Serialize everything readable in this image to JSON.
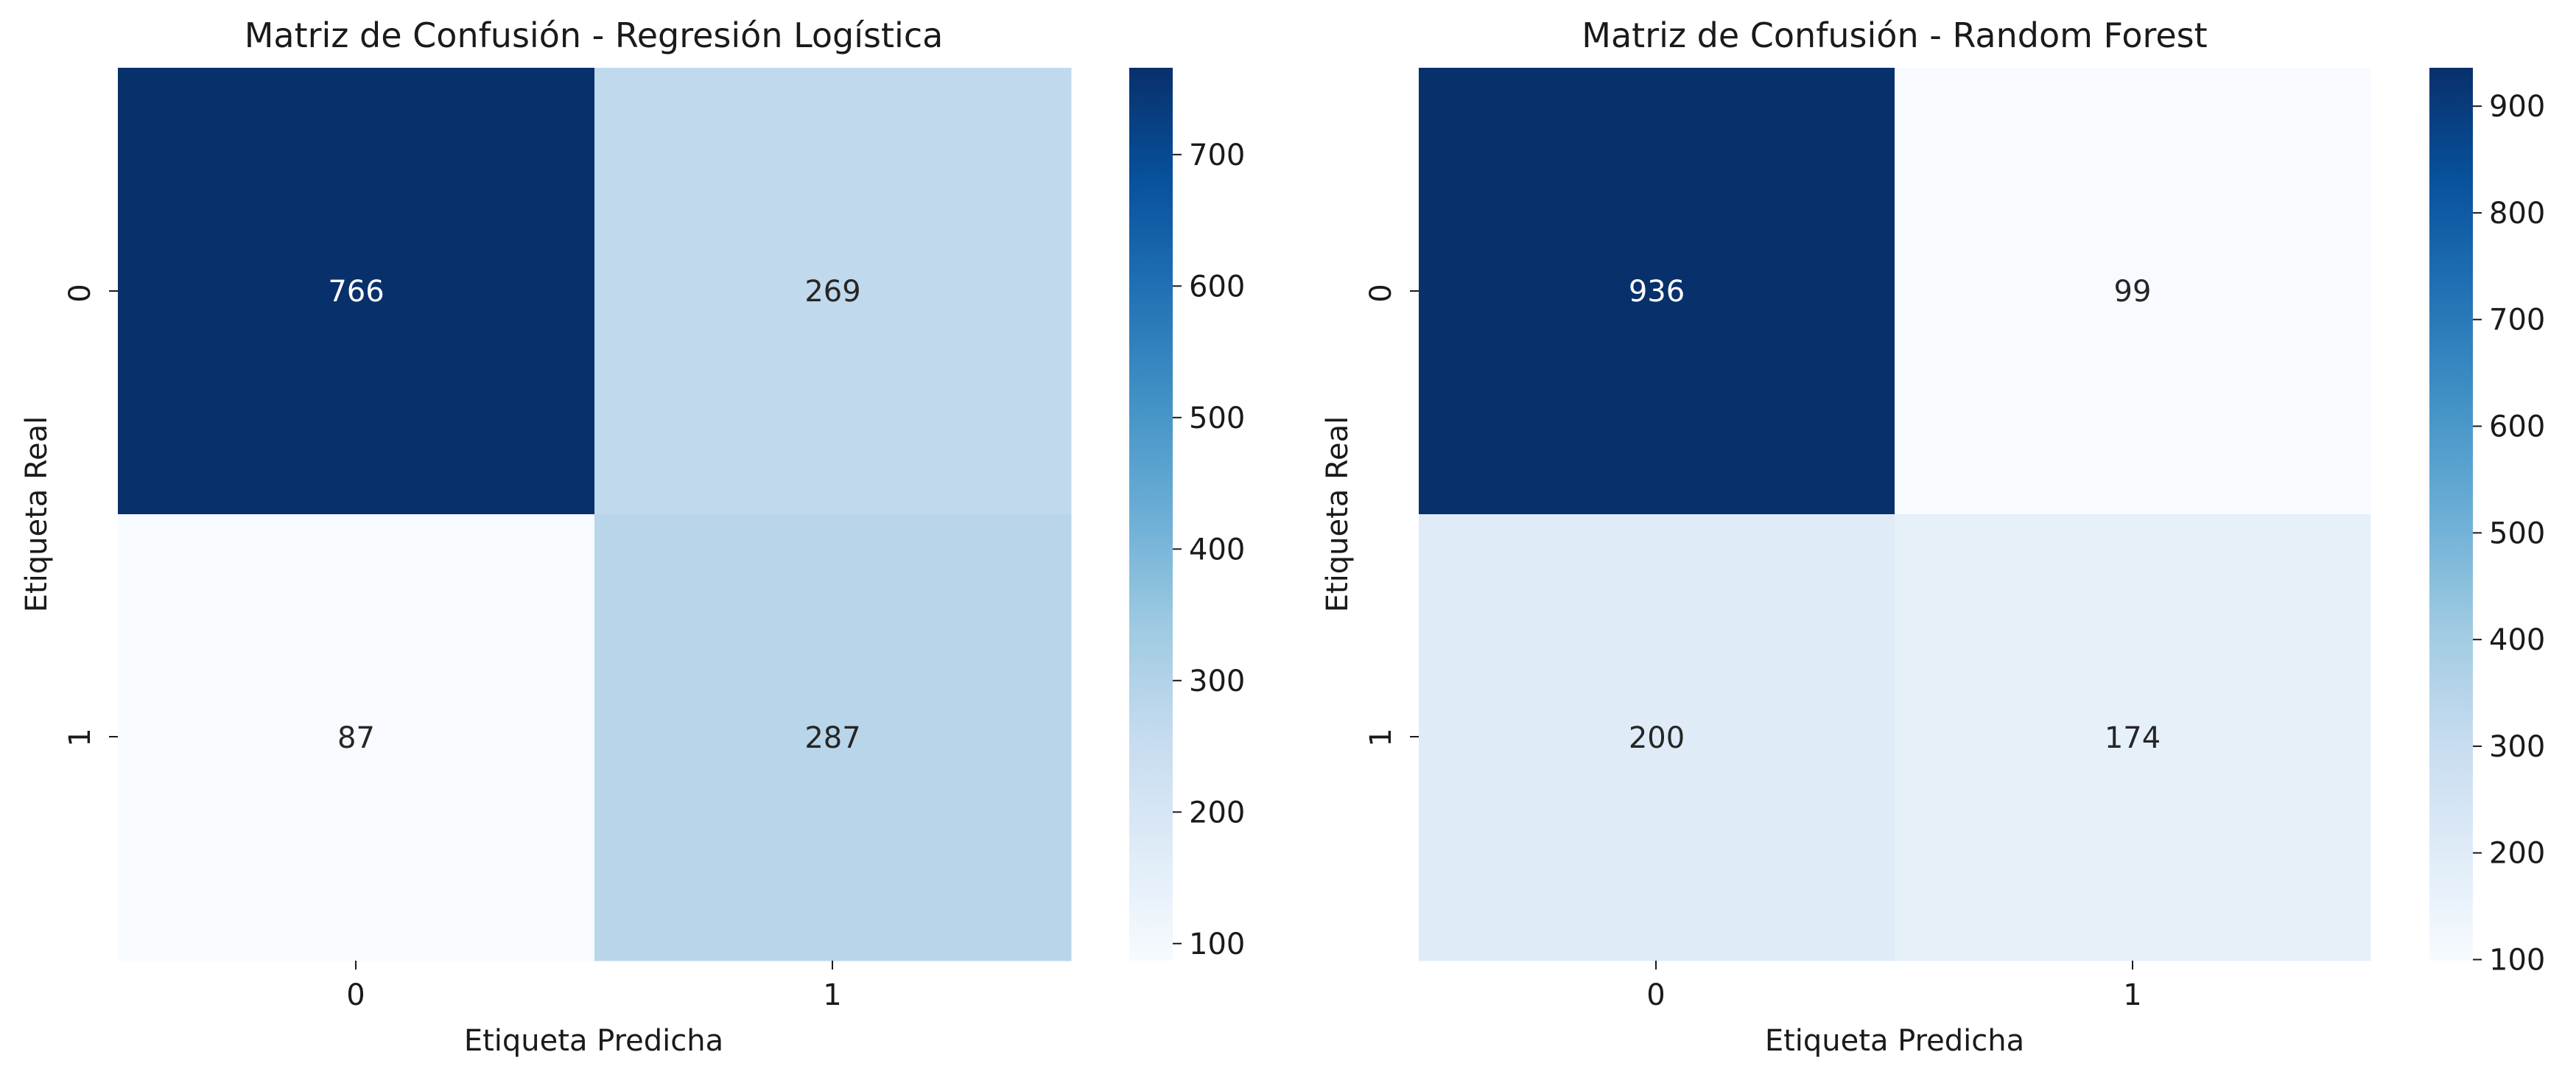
{
  "colors": {
    "colormap": "Blues",
    "stops": [
      "#f7fbff",
      "#deebf7",
      "#c6dbef",
      "#9ecae1",
      "#6baed6",
      "#4292c6",
      "#2171b5",
      "#08519c",
      "#08306b"
    ],
    "text_on_dark": "#ffffff",
    "text_on_light": "#262626",
    "axis_text": "#1a1a1a"
  },
  "chart_data": [
    {
      "type": "heatmap",
      "title": "Matriz de Confusión - Regresión Logística",
      "xlabel": "Etiqueta Predicha",
      "ylabel": "Etiqueta Real",
      "x_categories": [
        "0",
        "1"
      ],
      "y_categories": [
        "0",
        "1"
      ],
      "values": [
        [
          766,
          269
        ],
        [
          87,
          287
        ]
      ],
      "value_labels": [
        [
          "766",
          "269"
        ],
        [
          "87",
          "287"
        ]
      ],
      "colorbar": {
        "range": [
          87,
          766
        ],
        "ticks": [
          100,
          200,
          300,
          400,
          500,
          600,
          700
        ],
        "tick_labels": [
          "100",
          "200",
          "300",
          "400",
          "500",
          "600",
          "700"
        ]
      }
    },
    {
      "type": "heatmap",
      "title": "Matriz de Confusión - Random Forest",
      "xlabel": "Etiqueta Predicha",
      "ylabel": "Etiqueta Real",
      "x_categories": [
        "0",
        "1"
      ],
      "y_categories": [
        "0",
        "1"
      ],
      "values": [
        [
          936,
          99
        ],
        [
          200,
          174
        ]
      ],
      "value_labels": [
        [
          "936",
          "99"
        ],
        [
          "200",
          "174"
        ]
      ],
      "colorbar": {
        "range": [
          99,
          936
        ],
        "ticks": [
          100,
          200,
          300,
          400,
          500,
          600,
          700,
          800,
          900
        ],
        "tick_labels": [
          "100",
          "200",
          "300",
          "400",
          "500",
          "600",
          "700",
          "800",
          "900"
        ]
      }
    }
  ]
}
